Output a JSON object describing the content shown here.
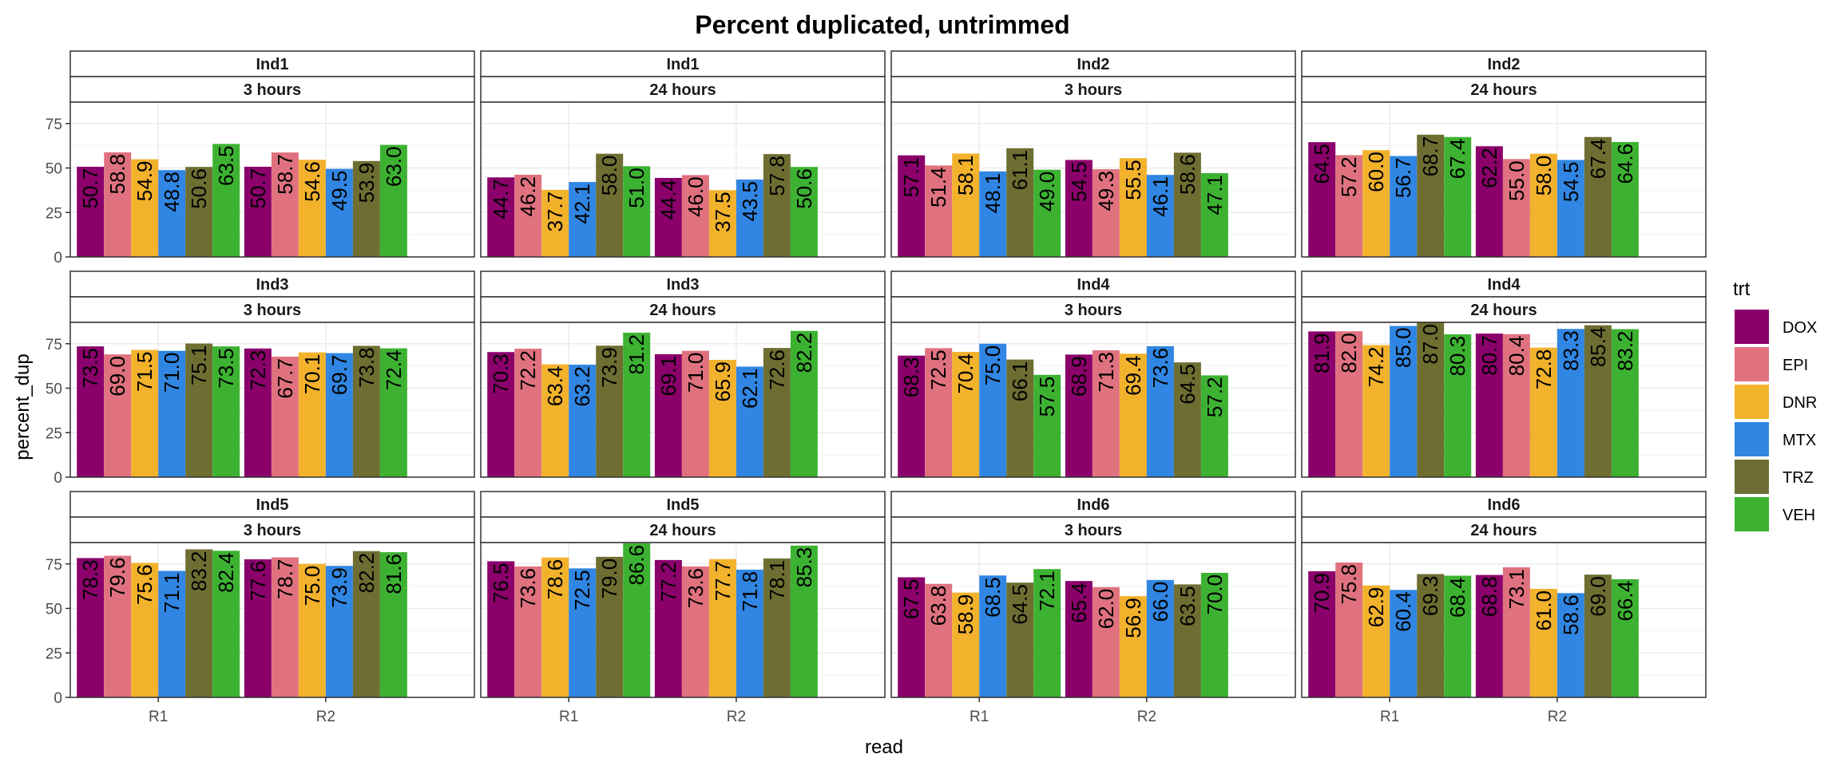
{
  "chart_data": {
    "type": "bar",
    "title": "Percent duplicated, untrimmed",
    "xlabel": "read",
    "ylabel": "percent_dup",
    "ylim": [
      0,
      87
    ],
    "y_ticks": [
      0,
      25,
      50,
      75
    ],
    "x_categories": [
      "R1",
      "R2"
    ],
    "grid": true,
    "legend": {
      "title": "trt",
      "position": "right",
      "entries": [
        {
          "name": "DOX",
          "color": "#8B006B"
        },
        {
          "name": "EPI",
          "color": "#E0727F"
        },
        {
          "name": "DNR",
          "color": "#F2B22C"
        },
        {
          "name": "MTX",
          "color": "#3086E2"
        },
        {
          "name": "TRZ",
          "color": "#6E6E33"
        },
        {
          "name": "VEH",
          "color": "#3DB232"
        }
      ]
    },
    "panels": [
      {
        "ind": "Ind1",
        "time": "3 hours",
        "R1": [
          50.7,
          58.8,
          54.9,
          48.8,
          50.6,
          63.5
        ],
        "R2": [
          50.7,
          58.7,
          54.6,
          49.5,
          53.9,
          63.0
        ]
      },
      {
        "ind": "Ind1",
        "time": "24 hours",
        "R1": [
          44.7,
          46.2,
          37.7,
          42.1,
          58.0,
          51.0
        ],
        "R2": [
          44.4,
          46.0,
          37.5,
          43.5,
          57.8,
          50.6
        ]
      },
      {
        "ind": "Ind2",
        "time": "3 hours",
        "R1": [
          57.1,
          51.4,
          58.1,
          48.1,
          61.1,
          49.0
        ],
        "R2": [
          54.5,
          49.3,
          55.5,
          46.1,
          58.6,
          47.1
        ]
      },
      {
        "ind": "Ind2",
        "time": "24 hours",
        "R1": [
          64.5,
          57.2,
          60.0,
          56.7,
          68.7,
          67.4
        ],
        "R2": [
          62.2,
          55.0,
          58.0,
          54.5,
          67.4,
          64.6
        ]
      },
      {
        "ind": "Ind3",
        "time": "3 hours",
        "R1": [
          73.5,
          69.0,
          71.5,
          71.0,
          75.1,
          73.5
        ],
        "R2": [
          72.3,
          67.7,
          70.1,
          69.7,
          73.8,
          72.4
        ]
      },
      {
        "ind": "Ind3",
        "time": "24 hours",
        "R1": [
          70.3,
          72.2,
          63.4,
          63.2,
          73.9,
          81.2
        ],
        "R2": [
          69.1,
          71.0,
          65.9,
          62.1,
          72.6,
          82.2
        ]
      },
      {
        "ind": "Ind4",
        "time": "3 hours",
        "R1": [
          68.3,
          72.5,
          70.4,
          75.0,
          66.1,
          57.5
        ],
        "R2": [
          68.9,
          71.3,
          69.4,
          73.6,
          64.5,
          57.2
        ]
      },
      {
        "ind": "Ind4",
        "time": "24 hours",
        "R1": [
          81.9,
          82.0,
          74.2,
          85.0,
          87.0,
          80.3
        ],
        "R2": [
          80.7,
          80.4,
          72.8,
          83.3,
          85.4,
          83.2
        ]
      },
      {
        "ind": "Ind5",
        "time": "3 hours",
        "R1": [
          78.3,
          79.6,
          75.6,
          71.1,
          83.2,
          82.4
        ],
        "R2": [
          77.6,
          78.7,
          75.0,
          73.9,
          82.2,
          81.6
        ]
      },
      {
        "ind": "Ind5",
        "time": "24 hours",
        "R1": [
          76.5,
          73.6,
          78.6,
          72.5,
          79.0,
          86.6
        ],
        "R2": [
          77.2,
          73.6,
          77.7,
          71.8,
          78.1,
          85.3
        ]
      },
      {
        "ind": "Ind6",
        "time": "3 hours",
        "R1": [
          67.5,
          63.8,
          58.9,
          68.5,
          64.5,
          72.1
        ],
        "R2": [
          65.4,
          62.0,
          56.9,
          66.0,
          63.5,
          70.0
        ]
      },
      {
        "ind": "Ind6",
        "time": "24 hours",
        "R1": [
          70.9,
          75.8,
          62.9,
          60.4,
          69.3,
          68.4
        ],
        "R2": [
          68.8,
          73.1,
          61.0,
          58.6,
          69.0,
          66.4
        ]
      }
    ]
  }
}
